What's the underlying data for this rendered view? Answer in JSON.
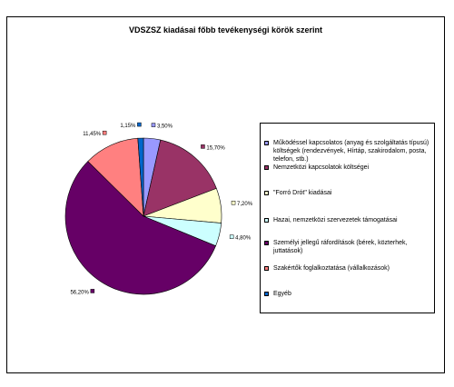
{
  "chart_data": {
    "type": "pie",
    "title": "VDSZSZ kiadásai főbb tevékenységi körök szerint",
    "slices": [
      {
        "label": "Működéssel kapcsolatos (anyag és szolgáltatás típusú) költségek (rendezvények, Hírtáp, szakirodalom, posta, telefon, stb.)",
        "value": 3.5,
        "display": "3,50%",
        "color": "#9999FF"
      },
      {
        "label": "Nemzetközi kapcsolatok költségei",
        "value": 15.7,
        "display": "15,70%",
        "color": "#993366"
      },
      {
        "label": "\"Forró Drót\" kiadásai",
        "value": 7.2,
        "display": "7,20%",
        "color": "#FFFFCC"
      },
      {
        "label": "Hazai, nemzetközi szervezetek támogatásai",
        "value": 4.8,
        "display": "4,80%",
        "color": "#CCFFFF"
      },
      {
        "label": "Személyi jellegű ráfordítások (bérek, közterhek, juttatások)",
        "value": 56.2,
        "display": "56,20%",
        "color": "#660066"
      },
      {
        "label": "Szakértők foglalkoztatása (vállalkozások)",
        "value": 11.45,
        "display": "11,45%",
        "color": "#FF8080"
      },
      {
        "label": "Egyéb",
        "value": 1.15,
        "display": "1,15%",
        "color": "#0066CC"
      }
    ],
    "legend_position": "right"
  }
}
